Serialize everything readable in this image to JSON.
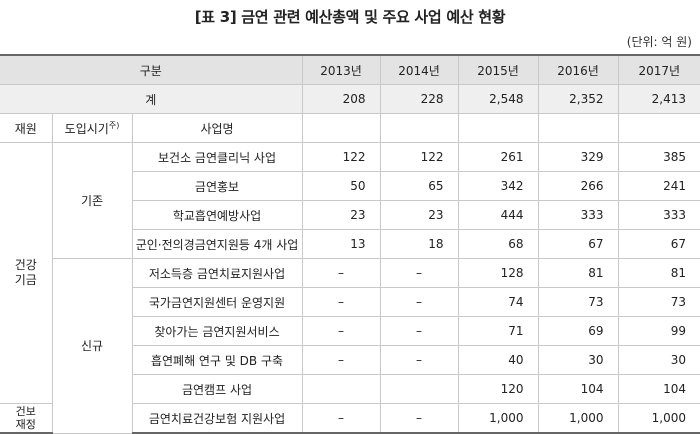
{
  "title": "[표 3] 금연 관련 예산총액 및 주요 사업 예산 현황",
  "unit": "(단위: 억 원)",
  "header": {
    "category": "구분",
    "years": [
      "2013년",
      "2014년",
      "2015년",
      "2016년",
      "2017년"
    ]
  },
  "total": {
    "label": "계",
    "values": [
      "208",
      "228",
      "2,548",
      "2,352",
      "2,413"
    ]
  },
  "subheader": {
    "source": "재원",
    "intro": "도입시기",
    "intro_sup": "주)",
    "project": "사업명"
  },
  "groups": {
    "health_fund": "건강기금",
    "insurance": "건보재정",
    "existing": "기존",
    "new": "신규"
  },
  "rows": [
    {
      "name": "보건소 금연클리닉 사업",
      "values": [
        "122",
        "122",
        "261",
        "329",
        "385"
      ]
    },
    {
      "name": "금연홍보",
      "values": [
        "50",
        "65",
        "342",
        "266",
        "241"
      ]
    },
    {
      "name": "학교흡연예방사업",
      "values": [
        "23",
        "23",
        "444",
        "333",
        "333"
      ]
    },
    {
      "name": "군인·전의경금연지원등 4개 사업",
      "values": [
        "13",
        "18",
        "68",
        "67",
        "67"
      ]
    },
    {
      "name": "저소득층 금연치료지원사업",
      "values": [
        "–",
        "–",
        "128",
        "81",
        "81"
      ]
    },
    {
      "name": "국가금연지원센터 운영지원",
      "values": [
        "–",
        "–",
        "74",
        "73",
        "73"
      ]
    },
    {
      "name": "찾아가는 금연지원서비스",
      "values": [
        "–",
        "–",
        "71",
        "69",
        "99"
      ]
    },
    {
      "name": "흡연폐해 연구 및 DB 구축",
      "values": [
        "–",
        "–",
        "40",
        "30",
        "30"
      ]
    },
    {
      "name": "금연캠프 사업",
      "values": [
        "",
        "",
        "120",
        "104",
        "104"
      ]
    },
    {
      "name": "금연치료건강보험 지원사업",
      "values": [
        "–",
        "–",
        "1,000",
        "1,000",
        "1,000"
      ]
    }
  ]
}
